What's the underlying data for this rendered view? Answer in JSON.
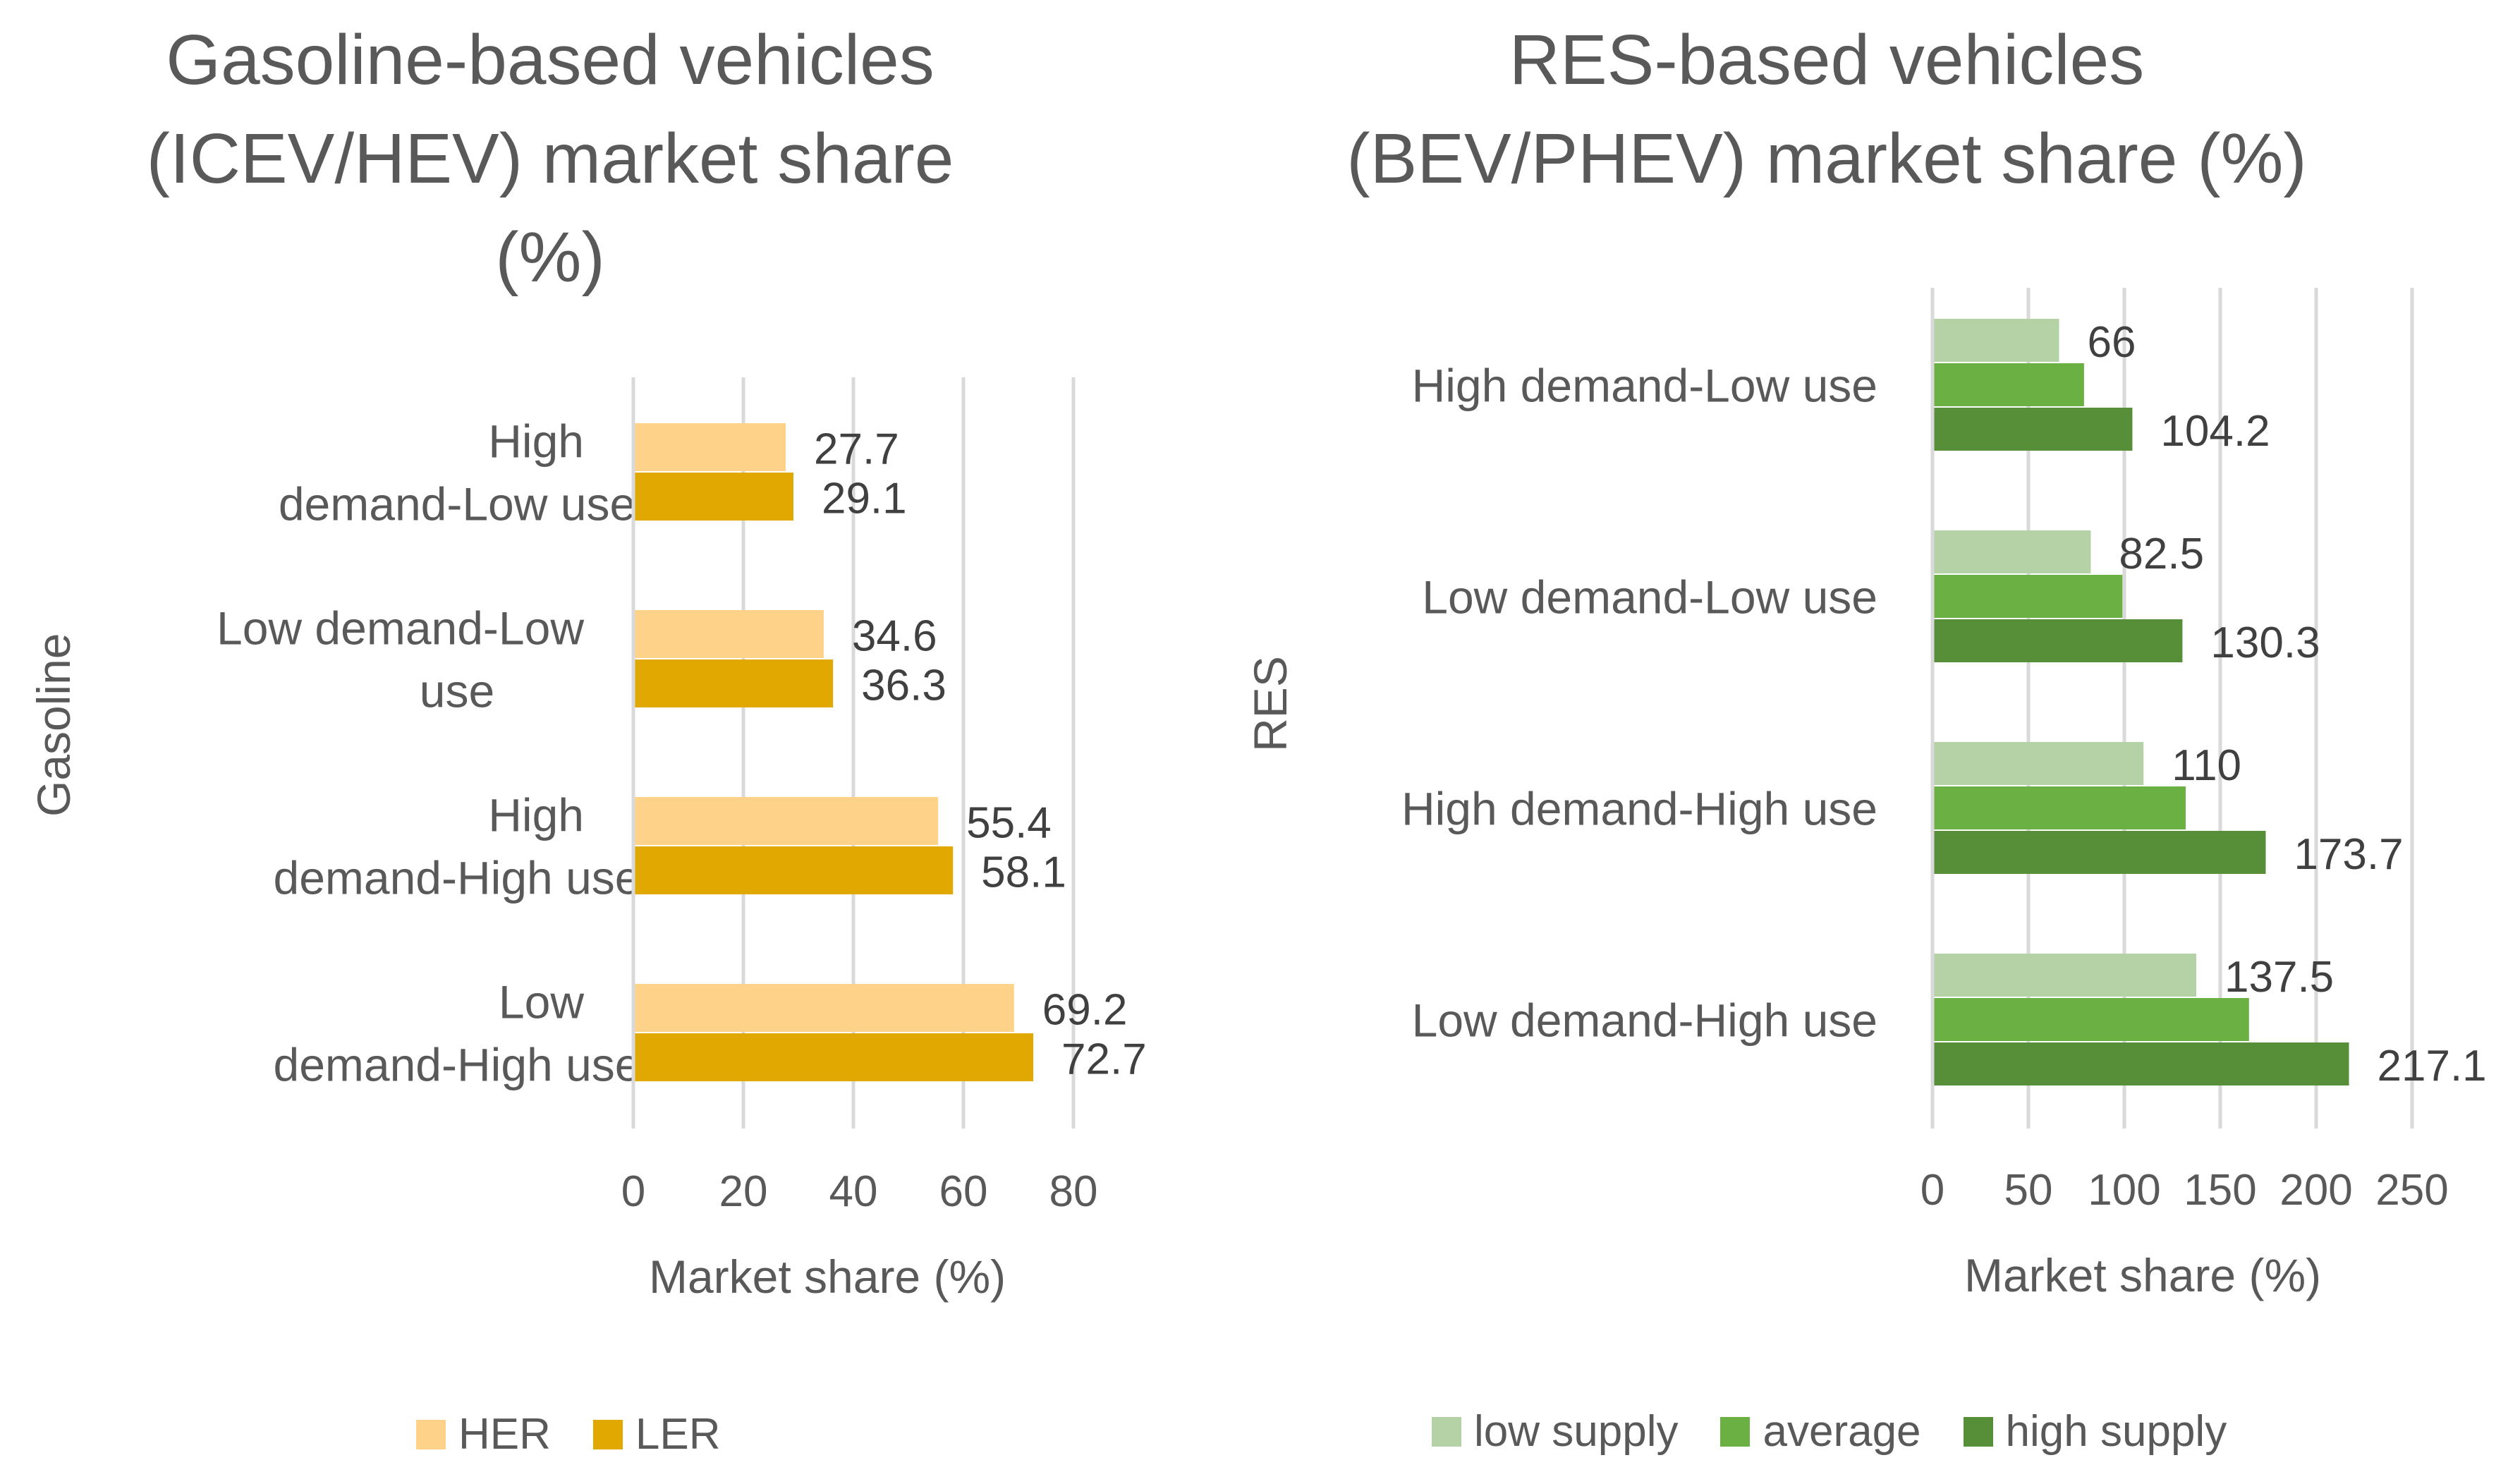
{
  "chart_data": [
    {
      "type": "bar",
      "orientation": "horizontal",
      "title": "Gasoline-based vehicles (ICEV/HEV) market share (%)",
      "side_label": "Gasoline",
      "xlabel": "Market share (%)",
      "ylabel": "",
      "xlim": [
        0,
        80
      ],
      "x_ticks": [
        0,
        20,
        40,
        60,
        80
      ],
      "grid": "vertical",
      "legend": "bottom",
      "categories": [
        "High demand-Low use",
        "Low demand-Low use",
        "High demand-High use",
        "Low demand-High use"
      ],
      "series": [
        {
          "name": "HER",
          "color": "#FFD28A",
          "values": [
            27.7,
            34.6,
            55.4,
            69.2
          ]
        },
        {
          "name": "LER",
          "color": "#E0A800",
          "values": [
            29.1,
            36.3,
            58.1,
            72.7
          ]
        }
      ]
    },
    {
      "type": "bar",
      "orientation": "horizontal",
      "title": "RES-based vehicles (BEV/PHEV) market share (%)",
      "side_label": "RES",
      "xlabel": "Market share (%)",
      "ylabel": "",
      "xlim": [
        0,
        250
      ],
      "x_ticks": [
        0,
        50,
        100,
        150,
        200,
        250
      ],
      "grid": "vertical",
      "legend": "bottom",
      "categories": [
        "High demand-Low use",
        "Low demand-Low use",
        "High demand-High use",
        "Low demand-High use"
      ],
      "series": [
        {
          "name": "low supply",
          "color": "#B5D1A6",
          "values": [
            66,
            82.5,
            110,
            137.5
          ],
          "labels": [
            "66",
            "82.5",
            "110",
            "137.5"
          ]
        },
        {
          "name": "average",
          "color": "#6BB043",
          "values": [
            79,
            99,
            132,
            165
          ],
          "labels": null
        },
        {
          "name": "high supply",
          "color": "#568F38",
          "values": [
            104.2,
            130.3,
            173.7,
            217.1
          ],
          "labels": [
            "104.2",
            "130.3",
            "173.7",
            "217.1"
          ]
        }
      ]
    }
  ]
}
